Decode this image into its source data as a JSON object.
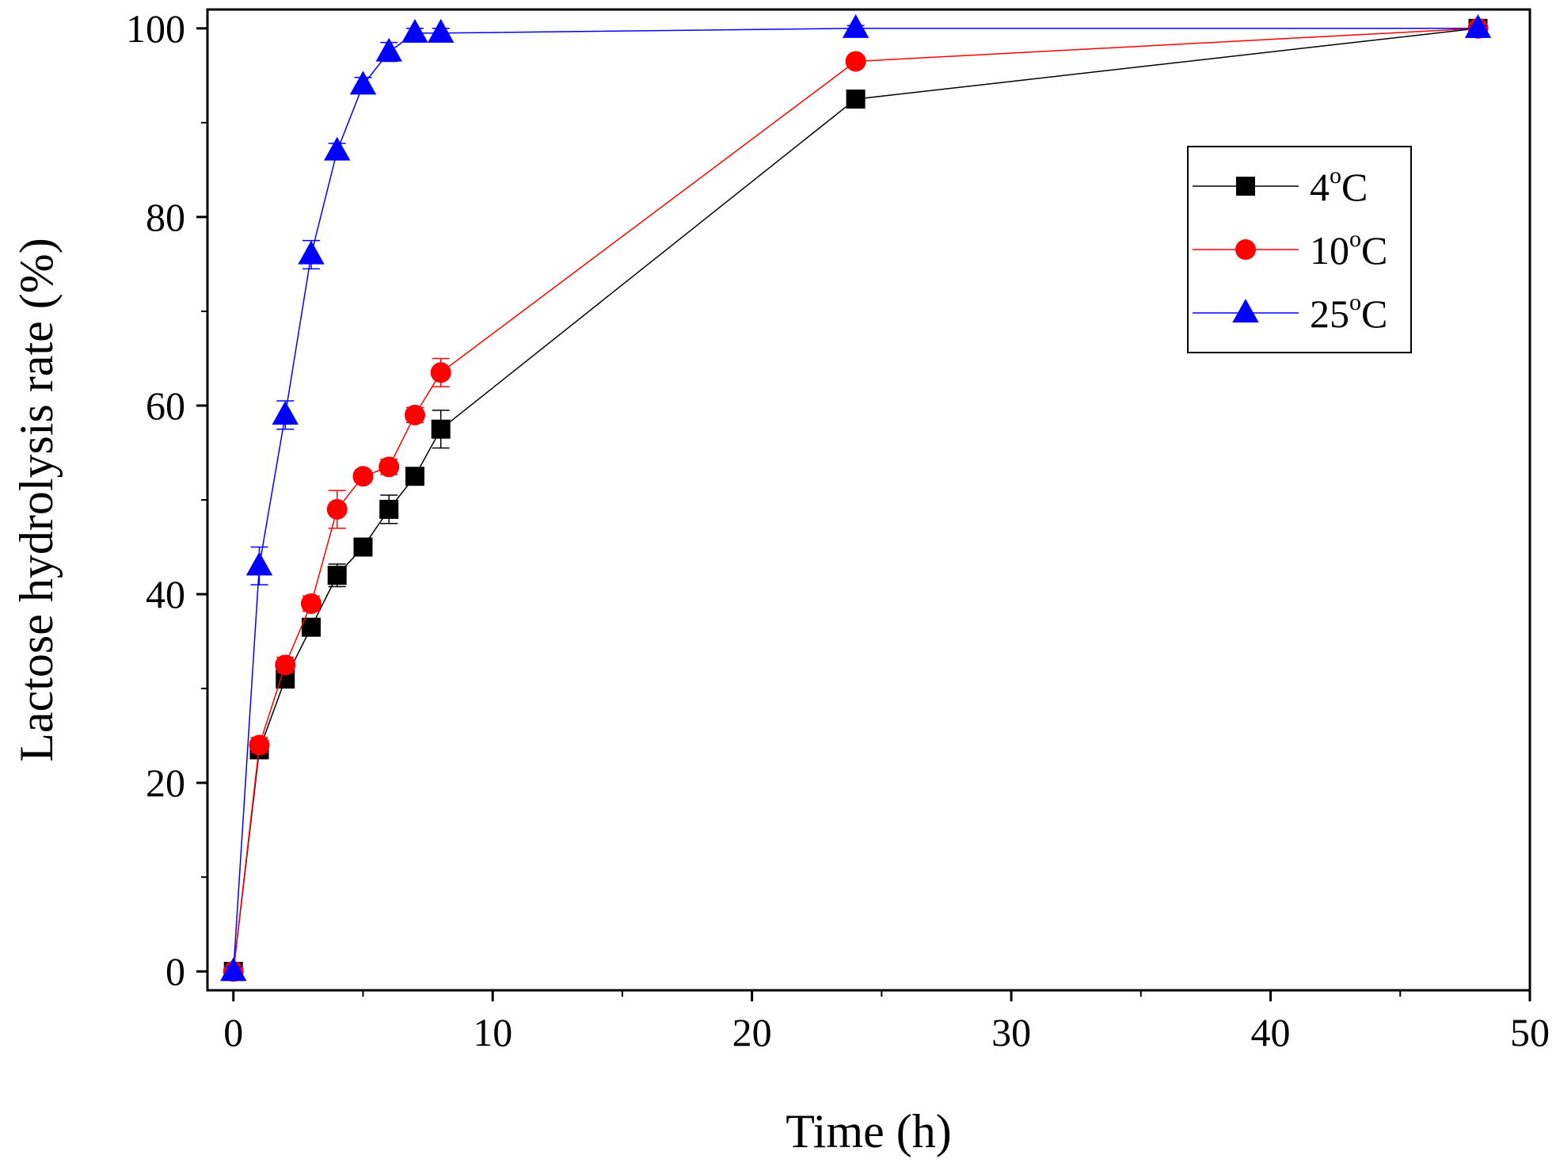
{
  "chart_data": {
    "type": "line",
    "title": "",
    "xlabel": "Time (h)",
    "ylabel": "Lactose hydrolysis rate (%)",
    "xlim": [
      -1,
      50
    ],
    "ylim": [
      -2,
      102
    ],
    "xticks": [
      0,
      10,
      20,
      30,
      40,
      50
    ],
    "xtick_labels": [
      "0",
      "10",
      "20",
      "30",
      "40",
      "50"
    ],
    "yticks": [
      0,
      20,
      40,
      60,
      80,
      100
    ],
    "ytick_labels": [
      "0",
      "20",
      "40",
      "60",
      "80",
      "100"
    ],
    "grid": false,
    "legend_position": "top-right",
    "series": [
      {
        "name": "4°C",
        "label_main": "4",
        "label_unit": "C",
        "label_degree": "o",
        "color": "#000000",
        "marker": "square",
        "x": [
          0,
          1,
          2,
          3,
          4,
          5,
          6,
          7,
          8,
          24,
          48
        ],
        "values": [
          0,
          23.5,
          31,
          36.5,
          42,
          45,
          49,
          52.5,
          57.5,
          92.5,
          100
        ],
        "errors": [
          0.5,
          0.8,
          0.8,
          0.8,
          1.2,
          0.8,
          1.5,
          0.8,
          2,
          0.5,
          0.3
        ]
      },
      {
        "name": "10°C",
        "label_main": "10",
        "label_unit": "C",
        "label_degree": "o",
        "color": "#ff0000",
        "marker": "circle",
        "x": [
          0,
          1,
          2,
          3,
          4,
          5,
          6,
          7,
          8,
          24,
          48
        ],
        "values": [
          0,
          24,
          32.5,
          39,
          49,
          52.5,
          53.5,
          59,
          63.5,
          96.5,
          100
        ],
        "errors": [
          0.5,
          0.8,
          0.8,
          0.8,
          2,
          0.6,
          0.8,
          0.8,
          1.5,
          0.5,
          0.3
        ]
      },
      {
        "name": "25°C",
        "label_main": "25",
        "label_unit": "C",
        "label_degree": "o",
        "color": "#0000ff",
        "marker": "triangle",
        "x": [
          0,
          1,
          2,
          3,
          4,
          5,
          6,
          7,
          8,
          24,
          48
        ],
        "values": [
          0,
          43,
          59,
          76,
          87,
          94,
          97.5,
          99.5,
          99.5,
          100,
          100
        ],
        "errors": [
          0.5,
          2,
          1.5,
          1.5,
          0.8,
          0.8,
          1,
          0.5,
          0.5,
          0.3,
          0.3
        ]
      }
    ]
  }
}
